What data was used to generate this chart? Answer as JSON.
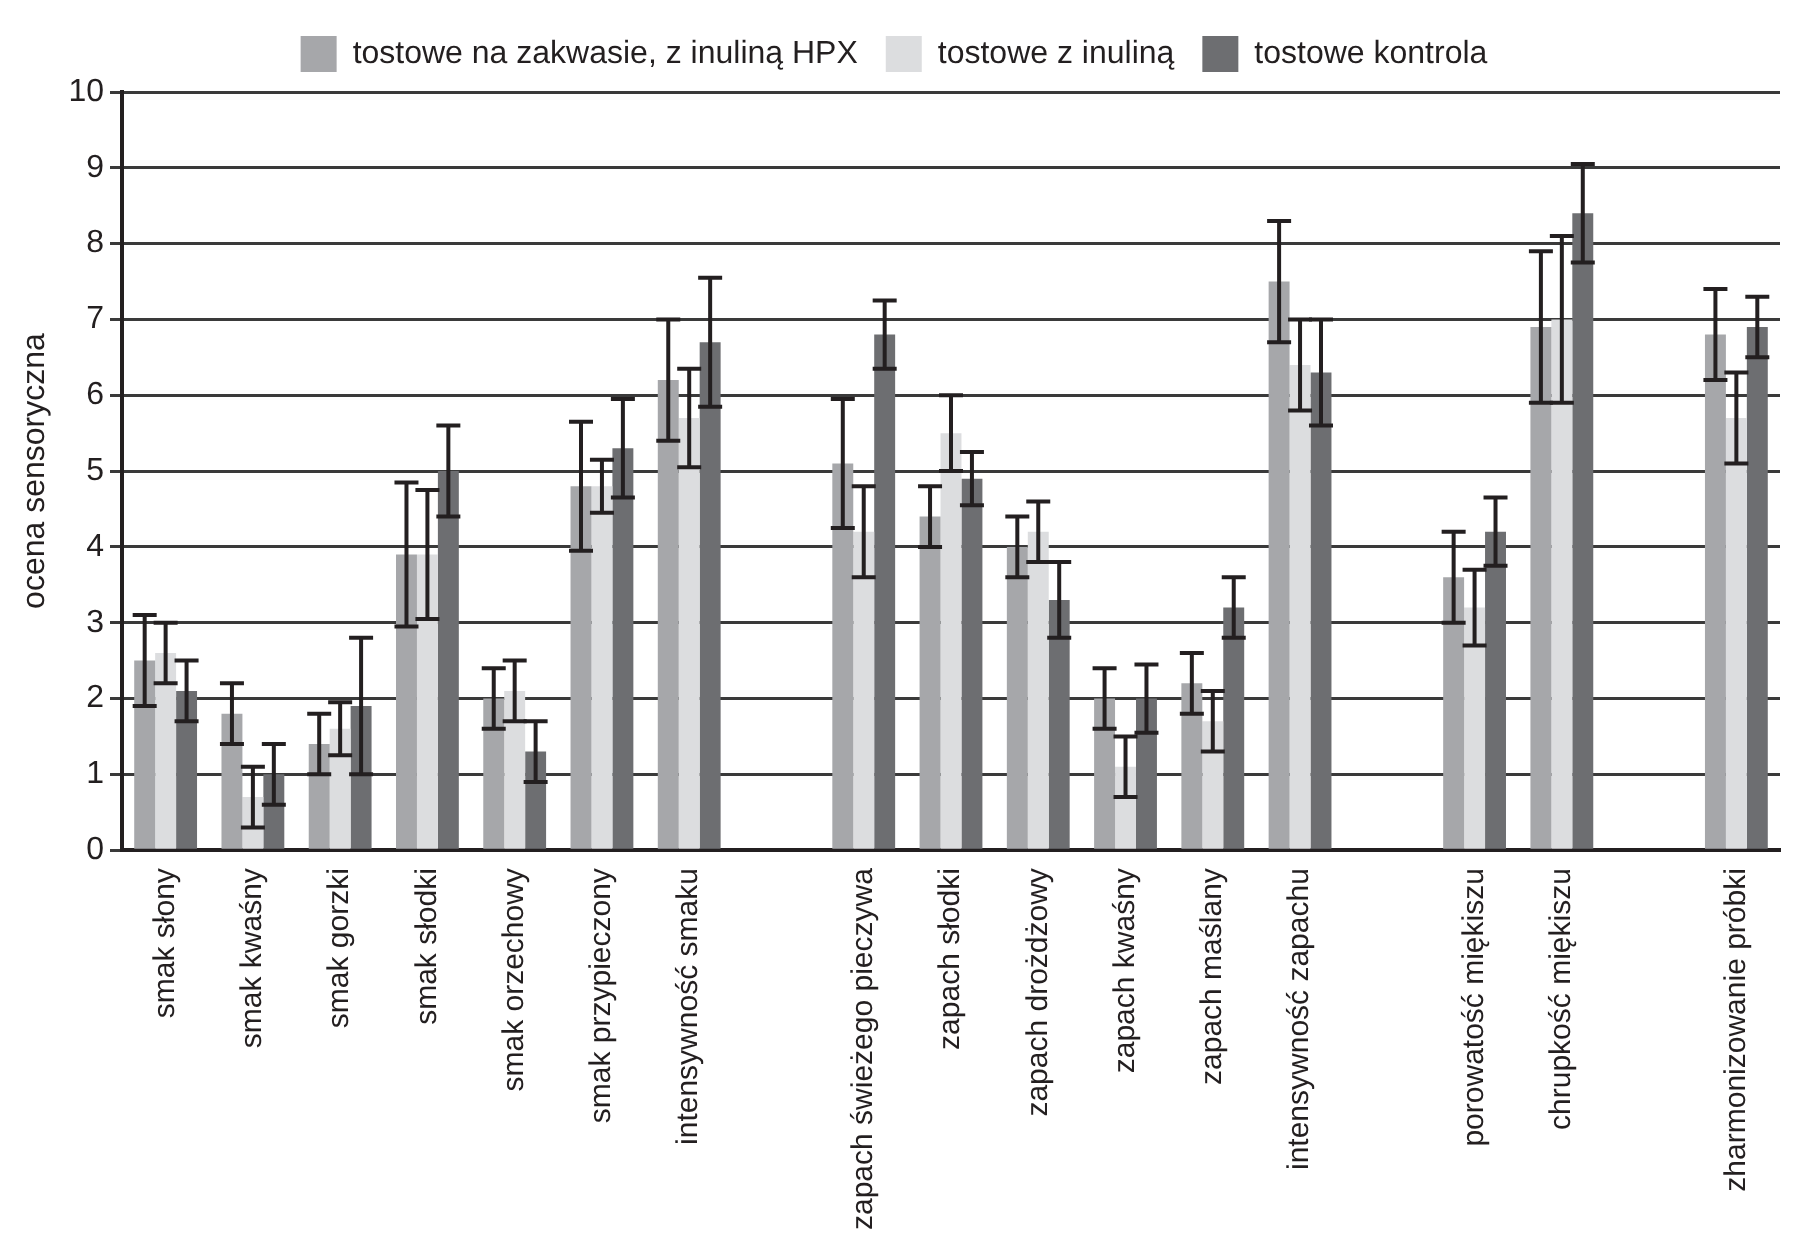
{
  "chart_data": {
    "type": "bar",
    "ylabel": "ocena sensoryczna",
    "categories": [
      "smak słony",
      "smak kwaśny",
      "smak gorzki",
      "smak słodki",
      "smak orzechowy",
      "smak przypieczony",
      "intensywność smaku",
      null,
      "zapach świeżego pieczywa",
      "zapach słodki",
      "zapach drożdżowy",
      "zapach kwaśny",
      "zapach maślany",
      "intensywność zapachu",
      null,
      "porowatość miękiszu",
      "chrupkość miękiszu",
      null,
      "zharmonizowanie próbki"
    ],
    "series": [
      {
        "name": "tostowe na zakwasie, z inuliną HPX",
        "color": "#a6a7aa",
        "values": [
          2.5,
          1.8,
          1.4,
          3.9,
          2.0,
          4.8,
          6.2,
          null,
          5.1,
          4.4,
          4.0,
          2.0,
          2.2,
          7.5,
          null,
          3.6,
          6.9,
          null,
          6.8
        ],
        "errors": [
          0.6,
          0.4,
          0.4,
          0.95,
          0.4,
          0.85,
          0.8,
          null,
          0.85,
          0.4,
          0.4,
          0.4,
          0.4,
          0.8,
          null,
          0.6,
          1.0,
          null,
          0.6
        ]
      },
      {
        "name": "tostowe z inuliną",
        "color": "#dcdddf",
        "values": [
          2.6,
          0.7,
          1.6,
          3.9,
          2.1,
          4.8,
          5.7,
          null,
          4.2,
          5.5,
          4.2,
          1.1,
          1.7,
          6.4,
          null,
          3.2,
          7.0,
          null,
          5.7
        ],
        "errors": [
          0.4,
          0.4,
          0.35,
          0.85,
          0.4,
          0.35,
          0.65,
          null,
          0.6,
          0.5,
          0.4,
          0.4,
          0.4,
          0.6,
          null,
          0.5,
          1.1,
          null,
          0.6
        ]
      },
      {
        "name": "tostowe kontrola",
        "color": "#6d6e71",
        "values": [
          2.1,
          1.0,
          1.9,
          5.0,
          1.3,
          5.3,
          6.7,
          null,
          6.8,
          4.9,
          3.3,
          2.0,
          3.2,
          6.3,
          null,
          4.2,
          8.4,
          null,
          6.9
        ],
        "errors": [
          0.4,
          0.4,
          0.9,
          0.6,
          0.4,
          0.65,
          0.85,
          null,
          0.45,
          0.35,
          0.5,
          0.45,
          0.4,
          0.7,
          null,
          0.45,
          0.65,
          null,
          0.4
        ]
      }
    ],
    "ylim": [
      0,
      10
    ],
    "yticks": [
      0,
      1,
      2,
      3,
      4,
      5,
      6,
      7,
      8,
      9,
      10
    ],
    "grid": "y",
    "legend": "top"
  }
}
